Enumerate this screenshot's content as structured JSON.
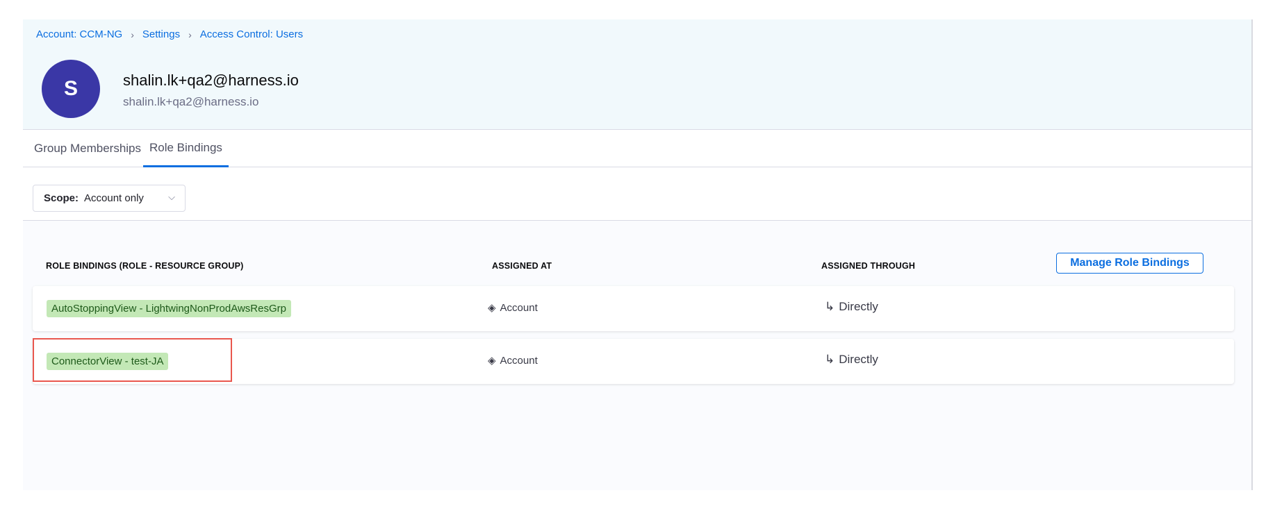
{
  "breadcrumb": [
    "Account: CCM-NG",
    "Settings",
    "Access Control: Users"
  ],
  "user": {
    "initial": "S",
    "name": "shalin.lk+qa2@harness.io",
    "email": "shalin.lk+qa2@harness.io"
  },
  "tabs": [
    {
      "label": "Group Memberships",
      "active": false
    },
    {
      "label": "Role Bindings",
      "active": true
    }
  ],
  "scope": {
    "label": "Scope:",
    "value": "Account only"
  },
  "table": {
    "headers": [
      "ROLE BINDINGS (ROLE - RESOURCE GROUP)",
      "ASSIGNED AT",
      "ASSIGNED THROUGH"
    ],
    "manage_label": "Manage Role Bindings",
    "rows": [
      {
        "binding": "AutoStoppingView - LightwingNonProdAwsResGrp",
        "assigned_at": "Account",
        "assigned_through": "Directly"
      },
      {
        "binding": "ConnectorView - test-JA",
        "assigned_at": "Account",
        "assigned_through": "Directly",
        "highlighted": true
      }
    ]
  },
  "colors": {
    "accent": "#0b6ee0",
    "avatar": "#3a37a6",
    "tag": "#c3e8b6",
    "highlight": "#e9574e"
  }
}
